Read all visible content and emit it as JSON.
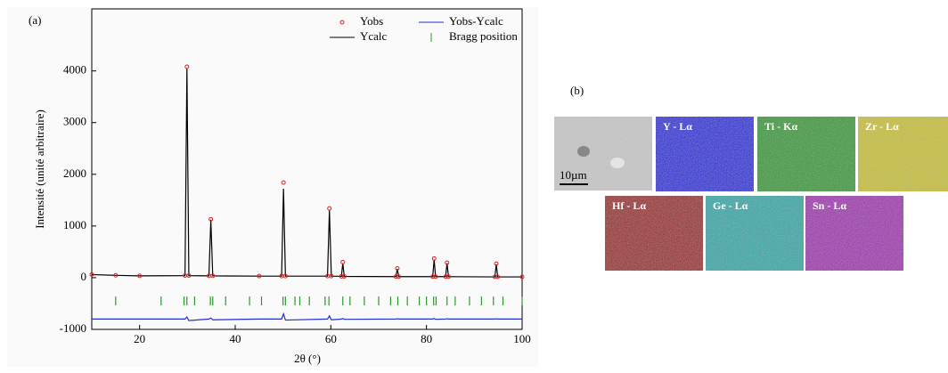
{
  "chart_data": {
    "type": "line",
    "panel_label": "(a)",
    "xlabel": "2θ (°)",
    "ylabel": "Intensité (unité arbitraire)",
    "xlim": [
      10,
      100
    ],
    "ylim": [
      -1000,
      5200
    ],
    "xticks": [
      20,
      40,
      60,
      80,
      100
    ],
    "yticks": [
      -1000,
      0,
      1000,
      2000,
      3000,
      4000
    ],
    "x": [
      10,
      15,
      20,
      29.5,
      29.9,
      30.3,
      34.5,
      34.9,
      35.3,
      45,
      49.7,
      50.1,
      50.5,
      59.3,
      59.7,
      60.1,
      62.2,
      62.5,
      62.8,
      73.6,
      73.9,
      74.2,
      81.3,
      81.6,
      81.9,
      84,
      84.3,
      84.6,
      94.3,
      94.6,
      94.9,
      100
    ],
    "series": [
      {
        "name": "Yobs",
        "color": "#d62020",
        "marker": "circle",
        "values": [
          62,
          47,
          36,
          42,
          4080,
          42,
          36,
          1130,
          36,
          31,
          32,
          1840,
          32,
          31,
          1340,
          31,
          26,
          300,
          26,
          21,
          180,
          21,
          21,
          370,
          21,
          21,
          290,
          21,
          16,
          270,
          16,
          16
        ]
      },
      {
        "name": "Ycalc",
        "color": "#000000",
        "values": [
          60,
          45,
          35,
          40,
          4050,
          40,
          35,
          1120,
          35,
          30,
          30,
          1720,
          30,
          30,
          1300,
          30,
          25,
          280,
          25,
          20,
          170,
          20,
          20,
          350,
          20,
          20,
          280,
          20,
          15,
          260,
          15,
          15
        ]
      },
      {
        "name": "Yobs-Ycalc",
        "color": "#1f2fd0",
        "values": [
          -800,
          -800,
          -800,
          -800,
          -760,
          -830,
          -800,
          -780,
          -815,
          -800,
          -800,
          -700,
          -820,
          -800,
          -740,
          -815,
          -800,
          -790,
          -805,
          -800,
          -795,
          -800,
          -800,
          -790,
          -805,
          -800,
          -795,
          -800,
          -800,
          -795,
          -800,
          -800
        ]
      },
      {
        "name": "Bragg position",
        "color": "#2a9a2a",
        "marker": "tick",
        "y": -450,
        "x": [
          15,
          24.5,
          29.3,
          29.9,
          31.5,
          34.8,
          35.3,
          38,
          43,
          45.5,
          50,
          50.5,
          52.5,
          53.5,
          55.5,
          58.8,
          59.6,
          62.5,
          64,
          67,
          70,
          72.5,
          74,
          76,
          78.5,
          80,
          81.5,
          82,
          84.3,
          86,
          89,
          91.5,
          94,
          96,
          100
        ]
      }
    ]
  },
  "panel_b": {
    "label": "(b)",
    "scale_bar": "10µm",
    "maps": [
      {
        "label": "Y - Lα",
        "color": "#1515d8"
      },
      {
        "label": "Ti - Kα",
        "color": "#2a9a2a"
      },
      {
        "label": "Zr - Lα",
        "color": "#c8c020"
      },
      {
        "label": "Hf - Lα",
        "color": "#9a1010"
      },
      {
        "label": "Ge - Lα",
        "color": "#20a8a8"
      },
      {
        "label": "Sn - Lα",
        "color": "#a020b0"
      }
    ]
  }
}
